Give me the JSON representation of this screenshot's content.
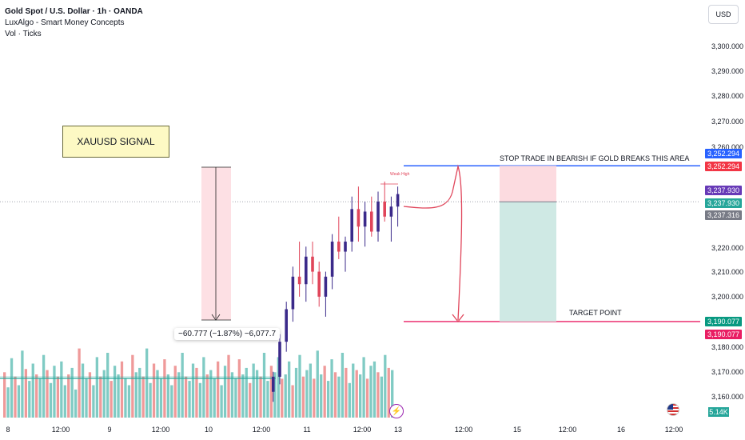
{
  "legend": {
    "title": "Gold Spot / U.S. Dollar · 1h · OANDA",
    "indicator1": "LuxAlgo - Smart Money Concepts",
    "indicator2": "Vol · Ticks"
  },
  "currency": "USD",
  "signal_box": "XAUUSD SIGNAL",
  "measure_label": "−60.777 (−1.87%) −6,077.7",
  "annotations": {
    "stop_trade": "STOP TRADE IN BEARISH IF GOLD BREAKS THIS AREA",
    "target": "TARGET POINT",
    "weak_high": "Weak High"
  },
  "price_axis": {
    "ticks": [
      "3,300.000",
      "3,290.000",
      "3,280.000",
      "3,270.000",
      "3,260.000",
      "3,220.000",
      "3,210.000",
      "3,200.000",
      "3,180.000",
      "3,170.000",
      "3,160.000"
    ],
    "tags": [
      {
        "label": "3,252.294",
        "color": "#2962ff"
      },
      {
        "label": "3,252.294",
        "color": "#f23645"
      },
      {
        "label": "3,237.930",
        "color": "#673ab7"
      },
      {
        "label": "3,237.930",
        "color": "#26a69a"
      },
      {
        "label": "3,237.316",
        "color": "#787b86"
      },
      {
        "label": "3,190.077",
        "color": "#089981"
      },
      {
        "label": "3,190.077",
        "color": "#e91e63"
      }
    ],
    "volume_tag": "5.14K"
  },
  "time_axis": [
    "8",
    "12:00",
    "9",
    "12:00",
    "10",
    "12:00",
    "11",
    "12:00",
    "13",
    "12:00",
    "15",
    "12:00",
    "16",
    "12:00"
  ],
  "chart_data": {
    "type": "candlestick",
    "levels": {
      "stop": 3252.294,
      "entry": 3237.93,
      "target": 3190.077
    },
    "candles": [
      [
        3162,
        3170,
        3158,
        3168
      ],
      [
        3168,
        3185,
        3165,
        3182
      ],
      [
        3182,
        3198,
        3178,
        3195
      ],
      [
        3195,
        3212,
        3190,
        3208
      ],
      [
        3208,
        3222,
        3200,
        3205
      ],
      [
        3205,
        3220,
        3198,
        3216
      ],
      [
        3216,
        3222,
        3205,
        3210
      ],
      [
        3210,
        3214,
        3196,
        3200
      ],
      [
        3200,
        3210,
        3192,
        3208
      ],
      [
        3208,
        3225,
        3203,
        3222
      ],
      [
        3222,
        3232,
        3215,
        3218
      ],
      [
        3218,
        3224,
        3210,
        3222
      ],
      [
        3222,
        3240,
        3218,
        3235
      ],
      [
        3235,
        3244,
        3222,
        3228
      ],
      [
        3228,
        3238,
        3220,
        3234
      ],
      [
        3234,
        3240,
        3224,
        3226
      ],
      [
        3226,
        3242,
        3222,
        3238
      ],
      [
        3238,
        3246,
        3230,
        3232
      ],
      [
        3232,
        3240,
        3222,
        3236
      ],
      [
        3236,
        3244,
        3228,
        3241
      ]
    ],
    "volume": [
      42,
      28,
      55,
      38,
      30,
      62,
      45,
      34,
      50,
      40,
      36,
      58,
      44,
      32,
      48,
      38,
      52,
      30,
      40,
      46,
      26,
      64,
      50,
      36,
      42,
      30,
      56,
      38,
      44,
      60,
      34,
      48,
      40,
      52,
      36,
      30,
      58,
      42,
      46,
      38,
      64,
      32,
      50,
      44,
      36,
      54,
      40,
      30,
      48,
      42,
      60,
      38,
      34,
      50,
      46,
      32,
      56,
      40,
      44,
      36,
      52,
      30,
      48,
      58,
      42,
      36,
      54,
      40,
      46,
      32,
      50,
      44,
      38,
      60,
      34,
      48,
      42,
      56,
      36,
      40,
      52,
      30,
      46,
      58,
      38,
      44,
      50,
      36,
      62,
      40,
      48,
      34,
      54,
      42,
      38,
      60,
      46,
      32,
      50,
      44,
      40,
      56,
      36,
      48,
      52,
      42,
      38,
      58,
      46,
      44
    ]
  }
}
